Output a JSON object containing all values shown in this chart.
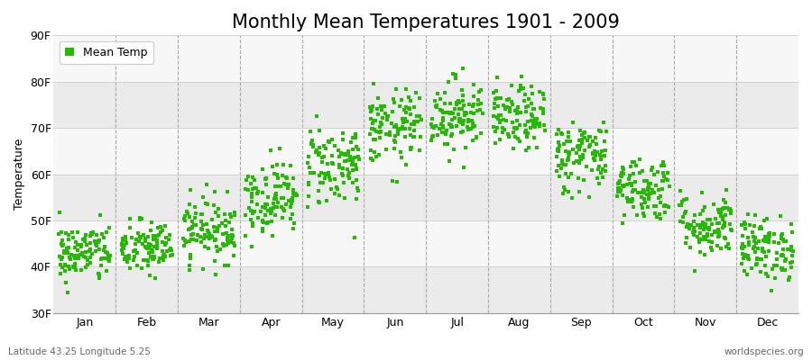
{
  "title": "Monthly Mean Temperatures 1901 - 2009",
  "ylabel": "Temperature",
  "xlabel_bottom_left": "Latitude 43.25 Longitude 5.25",
  "xlabel_bottom_right": "worldspecies.org",
  "legend_label": "Mean Temp",
  "dot_color": "#22bb00",
  "background_color": "#ffffff",
  "plot_bg_color": "#ffffff",
  "band_colors": [
    "#ebebeb",
    "#f7f7f7"
  ],
  "ylim": [
    30,
    90
  ],
  "yticks": [
    30,
    40,
    50,
    60,
    70,
    80,
    90
  ],
  "ytick_labels": [
    "30F",
    "40F",
    "50F",
    "60F",
    "70F",
    "80F",
    "90F"
  ],
  "months": [
    "Jan",
    "Feb",
    "Mar",
    "Apr",
    "May",
    "Jun",
    "Jul",
    "Aug",
    "Sep",
    "Oct",
    "Nov",
    "Dec"
  ],
  "month_means": [
    43,
    44,
    48,
    55,
    62,
    70,
    73,
    72,
    64,
    57,
    49,
    44
  ],
  "month_stds": [
    3.2,
    3.0,
    3.5,
    4.0,
    4.5,
    4.0,
    4.0,
    3.5,
    4.0,
    3.5,
    3.5,
    3.5
  ],
  "n_years": 109,
  "seed": 42,
  "marker_size": 5,
  "title_fontsize": 15,
  "axis_fontsize": 9,
  "tick_fontsize": 9
}
